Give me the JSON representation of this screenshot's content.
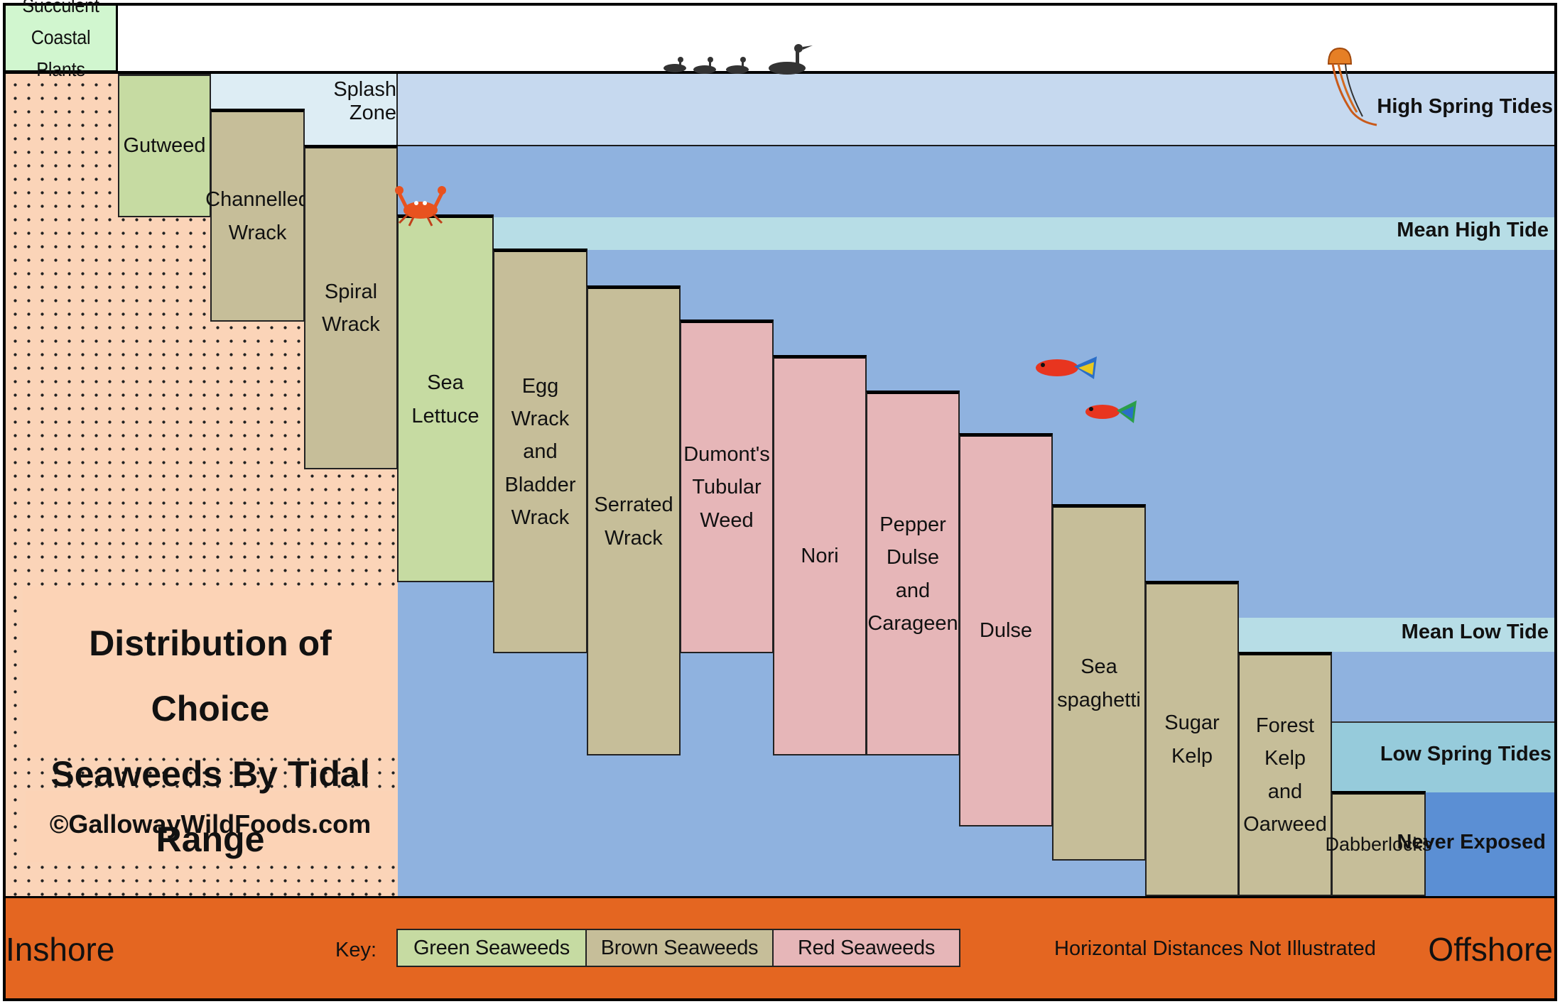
{
  "colors": {
    "green": "#c6dba2",
    "brown": "#c6be99",
    "red": "#e6b6b8",
    "sand": "#fbd4b8",
    "sky_pale": "#c6d9ef",
    "sea_mid": "#8fb2df",
    "mean_band": "#b7dde6",
    "low_spring_band": "#96cbdb",
    "never_exposed": "#5b8fd4",
    "bottom_bar": "#e46621",
    "succulent_box": "#d1f6cf",
    "splash_zone_box": "#ddedf4"
  },
  "header": {
    "succulent_label": "Succulent\nCoastal Plants",
    "splash_zone_label": "Splash Zone"
  },
  "bands": {
    "high_spring_tides": "High Spring Tides",
    "mean_high_tide": "Mean High Tide",
    "mean_low_tide": "Mean Low Tide",
    "low_spring_tides": "Low Spring Tides",
    "never_exposed": "Never Exposed"
  },
  "seaweeds": [
    {
      "name": "Gutweed",
      "type": "green"
    },
    {
      "name": "Channelled\nWrack",
      "type": "brown"
    },
    {
      "name": "Spiral Wrack",
      "type": "brown"
    },
    {
      "name": "Sea Lettuce",
      "type": "green"
    },
    {
      "name": "Egg Wrack\nand\nBladder\nWrack",
      "type": "brown"
    },
    {
      "name": "Serrated\nWrack",
      "type": "brown"
    },
    {
      "name": "Dumont's\nTubular\nWeed",
      "type": "red"
    },
    {
      "name": "Nori",
      "type": "red"
    },
    {
      "name": "Pepper\nDulse and\nCarageen",
      "type": "red"
    },
    {
      "name": "Dulse",
      "type": "red"
    },
    {
      "name": "Sea\nspaghetti",
      "type": "brown"
    },
    {
      "name": "Sugar Kelp",
      "type": "brown"
    },
    {
      "name": "Forest Kelp\nand\nOarweed",
      "type": "brown"
    },
    {
      "name": "Dabberlocks",
      "type": "brown"
    }
  ],
  "title": {
    "line1": "Distribution of Choice",
    "line2": "Seaweeds By Tidal Range",
    "copyright": "©GallowayWildFoods.com"
  },
  "footer": {
    "inshore": "Inshore",
    "offshore": "Offshore",
    "key_label": "Key:",
    "key_green": "Green Seaweeds",
    "key_brown": "Brown Seaweeds",
    "key_red": "Red Seaweeds",
    "note": "Horizontal Distances Not Illustrated"
  },
  "icons": [
    "bird-icon",
    "crab-icon",
    "fish-icon",
    "jellyfish-icon"
  ]
}
